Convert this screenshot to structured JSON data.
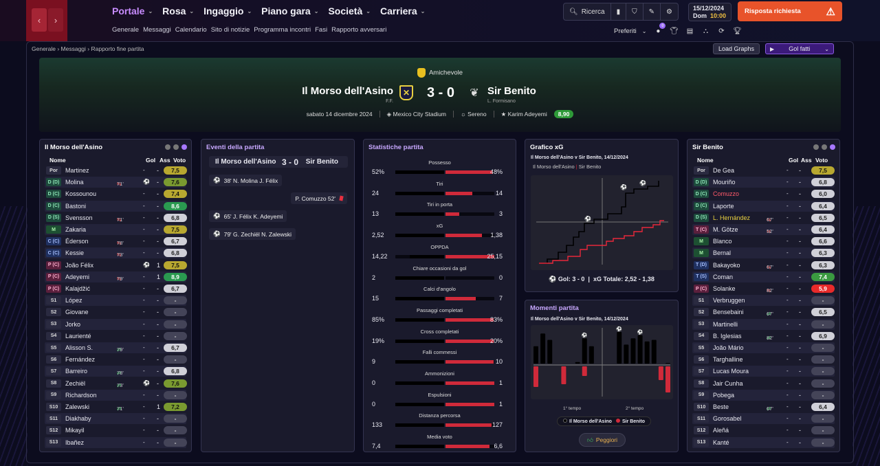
{
  "nav": {
    "back": "‹",
    "forward": "›"
  },
  "menu": [
    {
      "label": "Portale",
      "active": true
    },
    {
      "label": "Rosa"
    },
    {
      "label": "Ingaggio"
    },
    {
      "label": "Piano gara"
    },
    {
      "label": "Società"
    },
    {
      "label": "Carriera"
    }
  ],
  "submenu": [
    "Generale",
    "Messaggi",
    "Calendario",
    "Sito di notizie",
    "Programma incontri",
    "Fasi",
    "Rapporto avversari"
  ],
  "search_label": "Ricerca",
  "date": {
    "date": "15/12/2024",
    "day": "Dom",
    "time": "10:00"
  },
  "alert_label": "Risposta richiesta",
  "prefs_label": "Preferiti",
  "prefs_badge": "0",
  "breadcrumb": [
    "Generale",
    "Messaggi",
    "Rapporto fine partita"
  ],
  "load_graphs": "Load Graphs",
  "gol_fatti": "Gol fatti",
  "match": {
    "competition": "Amichevole",
    "home": "Il Morso dell'Asino",
    "home_mgr": "F.F.",
    "away": "Sir Benito",
    "away_mgr": "L. Formisano",
    "score": "3 - 0",
    "date": "sabato 14 dicembre 2024",
    "stadium": "Mexico City Stadium",
    "weather": "Sereno",
    "potm": "Karim Adeyemi",
    "potm_rating": "8,90"
  },
  "home_panel": {
    "title": "Il Morso dell'Asino",
    "cols": {
      "name": "Nome",
      "gol": "Gol",
      "ass": "Ass",
      "voto": "Voto"
    },
    "players": [
      {
        "pos": "Por",
        "pc": "por",
        "name": "Martinez",
        "sub": "",
        "gol": "-",
        "ass": "-",
        "voto": "7,5",
        "rc": "g1"
      },
      {
        "pos": "D (D)",
        "pc": "d",
        "name": "Molina",
        "sub": "71'",
        "sd": "out",
        "gol": "⚽",
        "ass": "-",
        "voto": "7,6",
        "rc": "g2"
      },
      {
        "pos": "D (C)",
        "pc": "d",
        "name": "Kossounou",
        "sub": "",
        "gol": "-",
        "ass": "-",
        "voto": "7,4",
        "rc": "g1"
      },
      {
        "pos": "D (C)",
        "pc": "d",
        "name": "Bastoni",
        "sub": "",
        "gol": "-",
        "ass": "-",
        "voto": "8,6",
        "rc": "g4"
      },
      {
        "pos": "D (S)",
        "pc": "d",
        "name": "Svensson",
        "sub": "71'",
        "sd": "out",
        "gol": "-",
        "ass": "-",
        "voto": "6,8",
        "rc": "n"
      },
      {
        "pos": "M",
        "pc": "m",
        "name": "Zakaria",
        "sub": "",
        "gol": "-",
        "ass": "-",
        "voto": "7,5",
        "rc": "g1"
      },
      {
        "pos": "C (C)",
        "pc": "c",
        "name": "Éderson",
        "sub": "78'",
        "sd": "out",
        "gol": "-",
        "ass": "-",
        "voto": "6,7",
        "rc": "n"
      },
      {
        "pos": "C (C)",
        "pc": "c",
        "name": "Kessie",
        "sub": "73'",
        "sd": "out",
        "gol": "-",
        "ass": "-",
        "voto": "6,8",
        "rc": "n"
      },
      {
        "pos": "P (C)",
        "pc": "p",
        "name": "João Félix",
        "sub": "",
        "gol": "⚽",
        "ass": "1",
        "voto": "7,5",
        "rc": "g1"
      },
      {
        "pos": "P (C)",
        "pc": "p",
        "name": "Adeyemi",
        "sub": "79'",
        "sd": "out",
        "gol": "-",
        "ass": "1",
        "voto": "8,9",
        "rc": "g4"
      },
      {
        "pos": "P (C)",
        "pc": "p",
        "name": "Kalajdžić",
        "sub": "",
        "gol": "-",
        "ass": "-",
        "voto": "6,7",
        "rc": "n"
      },
      {
        "pos": "S1",
        "pc": "s",
        "name": "López",
        "sub": "",
        "gol": "-",
        "ass": "-",
        "voto": "-",
        "rc": "dash"
      },
      {
        "pos": "S2",
        "pc": "s",
        "name": "Giovane",
        "sub": "",
        "gol": "-",
        "ass": "-",
        "voto": "-",
        "rc": "dash"
      },
      {
        "pos": "S3",
        "pc": "s",
        "name": "Jorko",
        "sub": "",
        "gol": "-",
        "ass": "-",
        "voto": "-",
        "rc": "dash"
      },
      {
        "pos": "S4",
        "pc": "s",
        "name": "Laurienté",
        "sub": "",
        "gol": "-",
        "ass": "-",
        "voto": "-",
        "rc": "dash"
      },
      {
        "pos": "S5",
        "pc": "s",
        "name": "Alisson S.",
        "sub": "79'",
        "sd": "in",
        "gol": "-",
        "ass": "-",
        "voto": "6,7",
        "rc": "n"
      },
      {
        "pos": "S6",
        "pc": "s",
        "name": "Fernández",
        "sub": "",
        "gol": "-",
        "ass": "-",
        "voto": "-",
        "rc": "dash"
      },
      {
        "pos": "S7",
        "pc": "s",
        "name": "Barreiro",
        "sub": "78'",
        "sd": "in",
        "gol": "-",
        "ass": "-",
        "voto": "6,8",
        "rc": "n"
      },
      {
        "pos": "S8",
        "pc": "s",
        "name": "Zechiël",
        "sub": "73'",
        "sd": "in",
        "gol": "⚽",
        "ass": "-",
        "voto": "7,6",
        "rc": "g2"
      },
      {
        "pos": "S9",
        "pc": "s",
        "name": "Richardson",
        "sub": "",
        "gol": "-",
        "ass": "-",
        "voto": "-",
        "rc": "dash"
      },
      {
        "pos": "S10",
        "pc": "s",
        "name": "Zalewski",
        "sub": "71'",
        "sd": "in",
        "gol": "-",
        "ass": "1",
        "voto": "7,2",
        "rc": "g2"
      },
      {
        "pos": "S11",
        "pc": "s",
        "name": "Diakhaby",
        "sub": "",
        "gol": "-",
        "ass": "-",
        "voto": "-",
        "rc": "dash"
      },
      {
        "pos": "S12",
        "pc": "s",
        "name": "Mikayil",
        "sub": "",
        "gol": "-",
        "ass": "-",
        "voto": "-",
        "rc": "dash"
      },
      {
        "pos": "S13",
        "pc": "s",
        "name": "Ibañez",
        "sub": "",
        "gol": "-",
        "ass": "-",
        "voto": "-",
        "rc": "dash"
      }
    ]
  },
  "away_panel": {
    "title": "Sir Benito",
    "cols": {
      "name": "Nome",
      "gol": "Gol",
      "ass": "Ass",
      "voto": "Voto"
    },
    "players": [
      {
        "pos": "Por",
        "pc": "por",
        "name": "De Gea",
        "sub": "",
        "gol": "-",
        "ass": "-",
        "voto": "7,5",
        "rc": "g1"
      },
      {
        "pos": "D (D)",
        "pc": "d",
        "name": "Mouriño",
        "sub": "",
        "gol": "-",
        "ass": "-",
        "voto": "6,8",
        "rc": "n"
      },
      {
        "pos": "D (C)",
        "pc": "d",
        "name": "Comuzzo",
        "sub": "",
        "gol": "-",
        "ass": "-",
        "voto": "6,0",
        "rc": "n",
        "nc": "#ff5a6a"
      },
      {
        "pos": "D (C)",
        "pc": "d",
        "name": "Laporte",
        "sub": "",
        "gol": "-",
        "ass": "-",
        "voto": "6,4",
        "rc": "n"
      },
      {
        "pos": "D (S)",
        "pc": "d",
        "name": "L. Hernández",
        "sub": "67'",
        "sd": "out",
        "gol": "-",
        "ass": "-",
        "voto": "6,5",
        "rc": "n",
        "nc": "#e8d040"
      },
      {
        "pos": "T (C)",
        "pc": "p",
        "name": "M. Götze",
        "sub": "52'",
        "sd": "out",
        "gol": "-",
        "ass": "-",
        "voto": "6,4",
        "rc": "n"
      },
      {
        "pos": "M",
        "pc": "m",
        "name": "Blanco",
        "sub": "",
        "gol": "-",
        "ass": "-",
        "voto": "6,6",
        "rc": "n"
      },
      {
        "pos": "M",
        "pc": "m",
        "name": "Bernal",
        "sub": "",
        "gol": "-",
        "ass": "-",
        "voto": "6,3",
        "rc": "n"
      },
      {
        "pos": "T (D)",
        "pc": "c",
        "name": "Bakayoko",
        "sub": "67'",
        "sd": "out",
        "gol": "-",
        "ass": "-",
        "voto": "6,3",
        "rc": "n"
      },
      {
        "pos": "T (S)",
        "pc": "c",
        "name": "Coman",
        "sub": "",
        "gol": "-",
        "ass": "-",
        "voto": "7,4",
        "rc": "g3"
      },
      {
        "pos": "P (C)",
        "pc": "p",
        "name": "Solanke",
        "sub": "82'",
        "sd": "out",
        "gol": "-",
        "ass": "-",
        "voto": "5,9",
        "rc": "red"
      },
      {
        "pos": "S1",
        "pc": "s",
        "name": "Verbruggen",
        "sub": "",
        "gol": "-",
        "ass": "-",
        "voto": "-",
        "rc": "dash"
      },
      {
        "pos": "S2",
        "pc": "s",
        "name": "Bensebaini",
        "sub": "67'",
        "sd": "in",
        "gol": "-",
        "ass": "-",
        "voto": "6,5",
        "rc": "n"
      },
      {
        "pos": "S3",
        "pc": "s",
        "name": "Martinelli",
        "sub": "",
        "gol": "-",
        "ass": "-",
        "voto": "-",
        "rc": "dash"
      },
      {
        "pos": "S4",
        "pc": "s",
        "name": "B. Iglesias",
        "sub": "82'",
        "sd": "in",
        "gol": "-",
        "ass": "-",
        "voto": "6,9",
        "rc": "n"
      },
      {
        "pos": "S5",
        "pc": "s",
        "name": "João Mário",
        "sub": "",
        "gol": "-",
        "ass": "-",
        "voto": "-",
        "rc": "dash"
      },
      {
        "pos": "S6",
        "pc": "s",
        "name": "Targhalline",
        "sub": "",
        "gol": "-",
        "ass": "-",
        "voto": "-",
        "rc": "dash"
      },
      {
        "pos": "S7",
        "pc": "s",
        "name": "Lucas Moura",
        "sub": "",
        "gol": "-",
        "ass": "-",
        "voto": "-",
        "rc": "dash"
      },
      {
        "pos": "S8",
        "pc": "s",
        "name": "Jair Cunha",
        "sub": "",
        "gol": "-",
        "ass": "-",
        "voto": "-",
        "rc": "dash"
      },
      {
        "pos": "S9",
        "pc": "s",
        "name": "Pobega",
        "sub": "",
        "gol": "-",
        "ass": "-",
        "voto": "-",
        "rc": "dash"
      },
      {
        "pos": "S10",
        "pc": "s",
        "name": "Beste",
        "sub": "67'",
        "sd": "in",
        "gol": "-",
        "ass": "-",
        "voto": "6,4",
        "rc": "n"
      },
      {
        "pos": "S11",
        "pc": "s",
        "name": "Gorosabel",
        "sub": "",
        "gol": "-",
        "ass": "-",
        "voto": "-",
        "rc": "dash"
      },
      {
        "pos": "S12",
        "pc": "s",
        "name": "Aleñá",
        "sub": "",
        "gol": "-",
        "ass": "-",
        "voto": "-",
        "rc": "dash"
      },
      {
        "pos": "S13",
        "pc": "s",
        "name": "Kanté",
        "sub": "",
        "gol": "-",
        "ass": "-",
        "voto": "-",
        "rc": "dash"
      }
    ]
  },
  "events": {
    "title": "Eventi della partita",
    "home": "Il Morso dell'Asino",
    "score": "3 - 0",
    "away": "Sir Benito",
    "items": [
      {
        "text": "38' N. Molina J. Félix",
        "side": "home",
        "icon": "⚽"
      },
      {
        "text": "P. Comuzzo 52'",
        "side": "away",
        "icon": "card"
      },
      {
        "text": "65' J. Félix K. Adeyemi",
        "side": "home",
        "icon": "⚽"
      },
      {
        "text": "79' G. Zechiël N. Zalewski",
        "side": "home",
        "icon": "⚽"
      }
    ]
  },
  "stats": {
    "title": "Statistiche partita",
    "rows": [
      {
        "label": "Possesso",
        "l": "52%",
        "r": "48%",
        "lf": 0.0,
        "rf": 0.96
      },
      {
        "label": "Tiri",
        "l": "24",
        "r": "14",
        "lf": 0.0,
        "rf": 0.55
      },
      {
        "label": "Tiri in porta",
        "l": "13",
        "r": "3",
        "lf": 0.0,
        "rf": 0.28
      },
      {
        "label": "xG",
        "l": "2,52",
        "r": "1,38",
        "lf": 0.0,
        "rf": 0.75
      },
      {
        "label": "OPPDA",
        "l": "14,22",
        "r": "25,15",
        "lf": 0.3,
        "rf": 1.0
      },
      {
        "label": "Chiare occasioni da gol",
        "l": "2",
        "r": "0",
        "lf": 0.0,
        "rf": 0.0
      },
      {
        "label": "Calci d'angolo",
        "l": "15",
        "r": "7",
        "lf": 0.0,
        "rf": 0.62
      },
      {
        "label": "Passaggi completati",
        "l": "85%",
        "r": "83%",
        "lf": 0.0,
        "rf": 0.98
      },
      {
        "label": "Cross completati",
        "l": "19%",
        "r": "20%",
        "lf": 0.0,
        "rf": 0.99
      },
      {
        "label": "Falli commessi",
        "l": "9",
        "r": "10",
        "lf": 0.0,
        "rf": 0.99
      },
      {
        "label": "Ammonizioni",
        "l": "0",
        "r": "1",
        "lf": 0.0,
        "rf": 1.0
      },
      {
        "label": "Espulsioni",
        "l": "0",
        "r": "1",
        "lf": 0.0,
        "rf": 1.0
      },
      {
        "label": "Distanza percorsa",
        "l": "133",
        "r": "127",
        "lf": 0.0,
        "rf": 0.95
      },
      {
        "label": "Media voto",
        "l": "7,4",
        "r": "6,6",
        "lf": 0.0,
        "rf": 0.9
      }
    ]
  },
  "xg": {
    "title": "Grafico xG",
    "subtitle": "Il Morso dell'Asino v Sir Benito, 14/12/2024",
    "home": "Il Morso dell'Asino",
    "away": "Sir Benito",
    "goals": "Gol: 3 - 0",
    "xg_total": "xG Totale: 2,52 - 1,38"
  },
  "moments": {
    "title": "Momenti partita",
    "subtitle": "Il Morso dell'Asino v Sir Benito, 14/12/2024",
    "h1": "1° tempo",
    "h2": "2° tempo",
    "home": "Il Morso dell'Asino",
    "away": "Sir Benito",
    "worst": "Peggiori",
    "home_bars": [
      0.55,
      0.95,
      0.75,
      0.0,
      0.0,
      0.0,
      0.05,
      0.8,
      0.55,
      0.0,
      0.0,
      0.0,
      1.0,
      0.6,
      0.8,
      0.9,
      0.7,
      0.75,
      0.0,
      0.02
    ],
    "away_bars": [
      0.75,
      0.0,
      0.0,
      0.0,
      0.65,
      0.0,
      0.0,
      0.35,
      0.0,
      0.0,
      0.0,
      0.0,
      0.0,
      0.0,
      0.0,
      0.0,
      0.0,
      0.0,
      0.5,
      0.95
    ]
  },
  "colors": {
    "accent": "#c88cff",
    "alert": "#e8532a",
    "home": "#000000",
    "away": "#d02a3a"
  }
}
